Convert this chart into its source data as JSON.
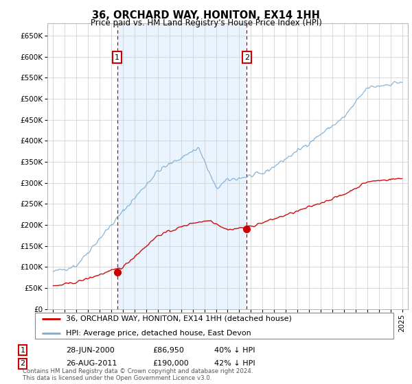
{
  "title": "36, ORCHARD WAY, HONITON, EX14 1HH",
  "subtitle": "Price paid vs. HM Land Registry's House Price Index (HPI)",
  "legend_line1": "36, ORCHARD WAY, HONITON, EX14 1HH (detached house)",
  "legend_line2": "HPI: Average price, detached house, East Devon",
  "footnote": "Contains HM Land Registry data © Crown copyright and database right 2024.\nThis data is licensed under the Open Government Licence v3.0.",
  "transaction1_date": "28-JUN-2000",
  "transaction1_price": "£86,950",
  "transaction1_hpi": "40% ↓ HPI",
  "transaction2_date": "26-AUG-2011",
  "transaction2_price": "£190,000",
  "transaction2_hpi": "42% ↓ HPI",
  "vline1_x": 2000.5,
  "vline2_x": 2011.65,
  "marker1_x": 2000.5,
  "marker1_y_red": 86950,
  "marker2_x": 2011.65,
  "marker2_y_red": 190000,
  "red_color": "#cc0000",
  "blue_color": "#7aadd6",
  "vline_color": "#cc0000",
  "shade_color": "#ddeeff",
  "ylim": [
    0,
    680000
  ],
  "xlim": [
    1994.5,
    2025.5
  ],
  "yticks": [
    0,
    50000,
    100000,
    150000,
    200000,
    250000,
    300000,
    350000,
    400000,
    450000,
    500000,
    550000,
    600000,
    650000
  ],
  "xtick_years": [
    1995,
    1996,
    1997,
    1998,
    1999,
    2000,
    2001,
    2002,
    2003,
    2004,
    2005,
    2006,
    2007,
    2008,
    2009,
    2010,
    2011,
    2012,
    2013,
    2014,
    2015,
    2016,
    2017,
    2018,
    2019,
    2020,
    2021,
    2022,
    2023,
    2024,
    2025
  ],
  "background_color": "#ffffff",
  "plot_bg_color": "#ffffff",
  "grid_color": "#cccccc"
}
